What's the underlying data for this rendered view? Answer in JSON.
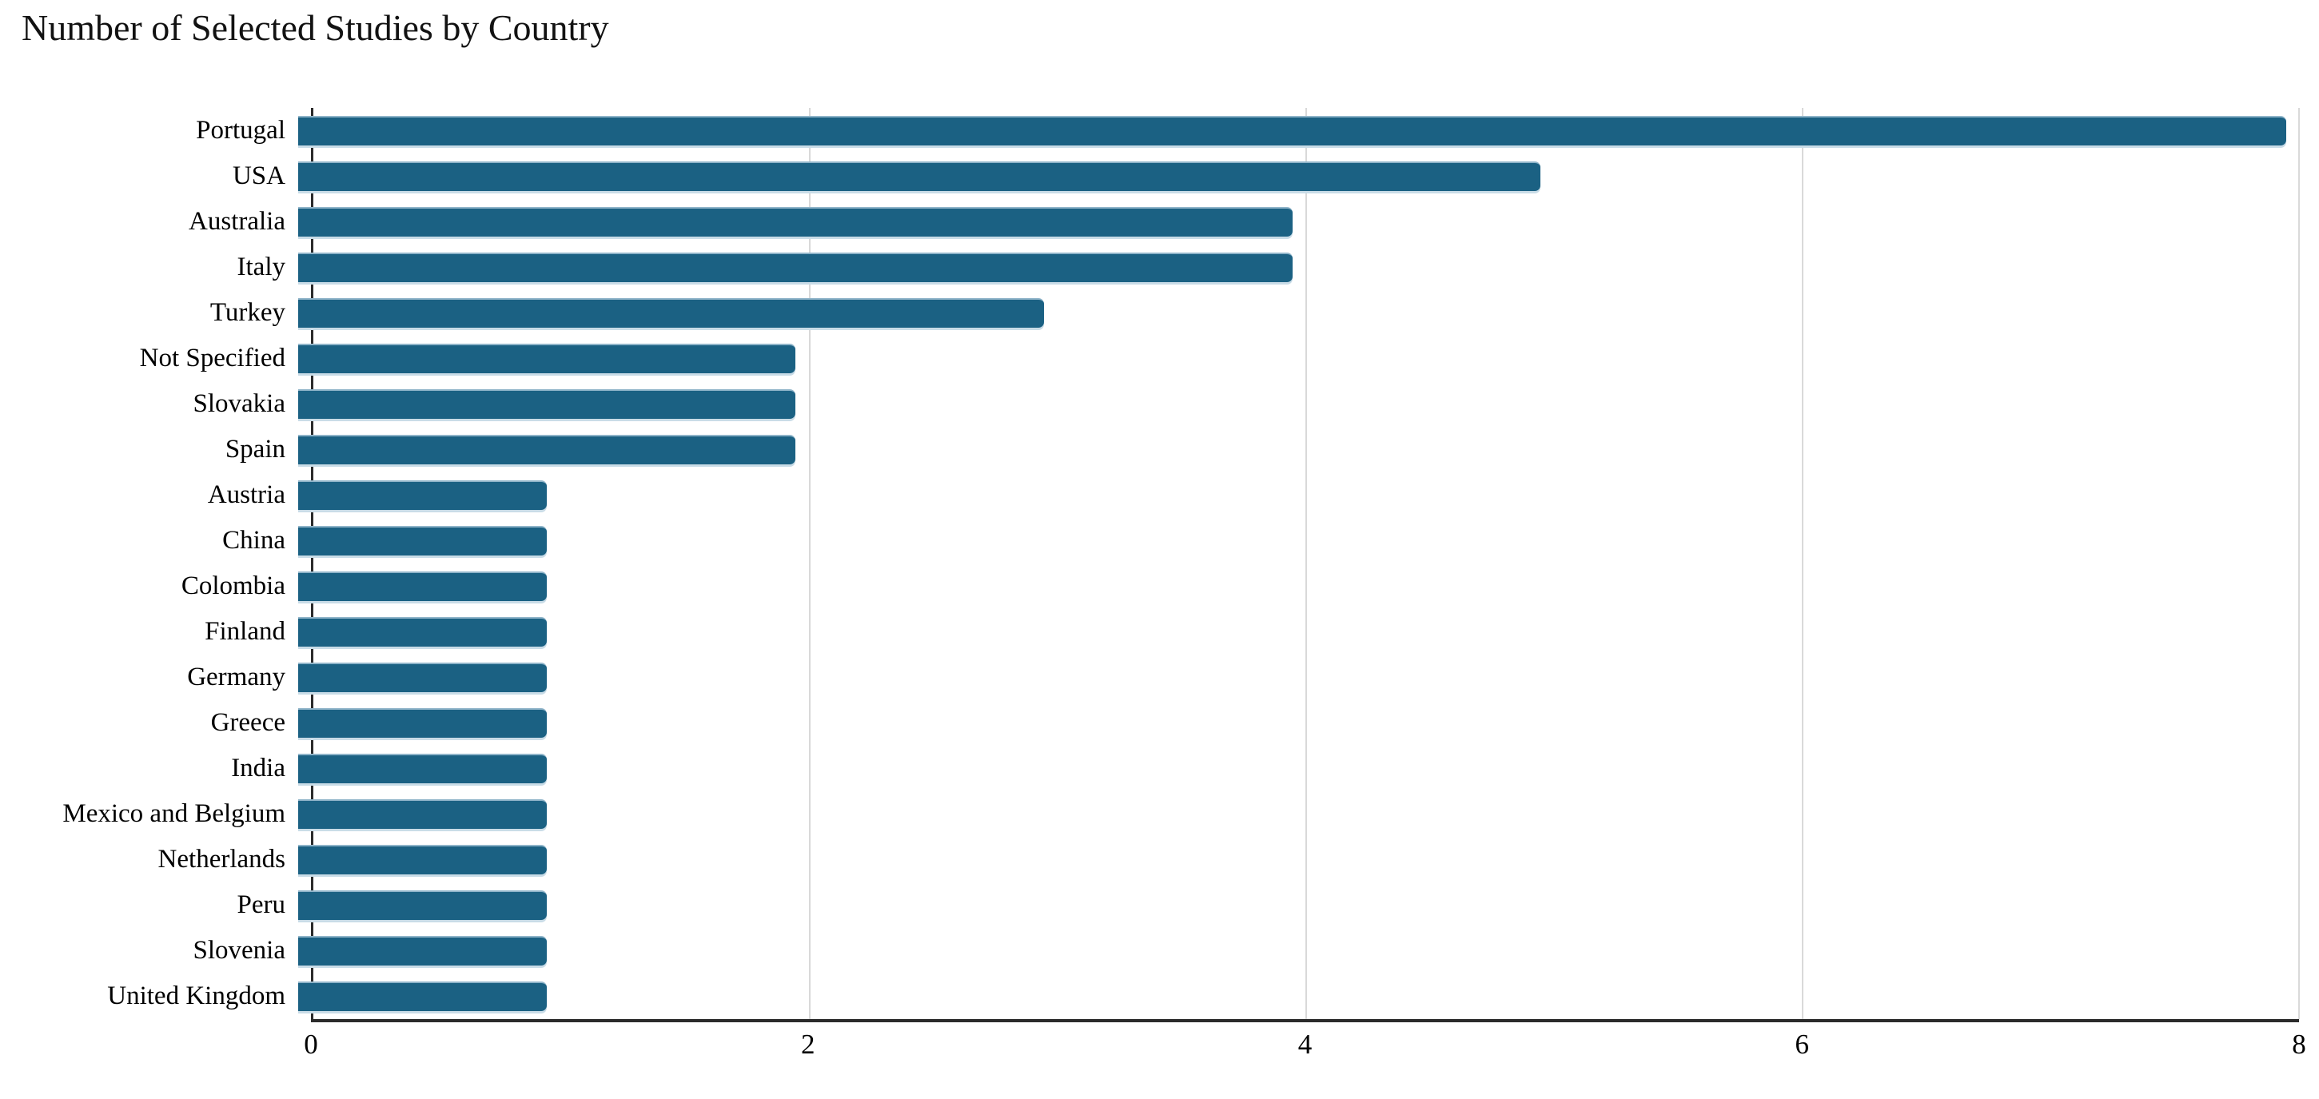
{
  "title": "Number of Selected Studies by Country",
  "chart_data": {
    "type": "bar",
    "orientation": "horizontal",
    "title": "Number of Selected Studies by Country",
    "categories": [
      "Portugal",
      "USA",
      "Australia",
      "Italy",
      "Turkey",
      "Not Specified",
      "Slovakia",
      "Spain",
      "Austria",
      "China",
      "Colombia",
      "Finland",
      "Germany",
      "Greece",
      "India",
      "Mexico and Belgium",
      "Netherlands",
      "Peru",
      "Slovenia",
      "United Kingdom"
    ],
    "values": [
      8,
      5,
      4,
      4,
      3,
      2,
      2,
      2,
      1,
      1,
      1,
      1,
      1,
      1,
      1,
      1,
      1,
      1,
      1,
      1
    ],
    "xlabel": "",
    "ylabel": "",
    "xlim": [
      0,
      8
    ],
    "x_ticks": [
      0,
      2,
      4,
      6,
      8
    ],
    "grid": "vertical-at-ticks",
    "legend": "none",
    "colors": {
      "bar": "#1B6183",
      "bar_edge": "#8FB4C9",
      "gridline": "#D9D9D9",
      "axis": "#2B2B2B",
      "text": "#000000",
      "background": "#FFFFFF"
    }
  }
}
